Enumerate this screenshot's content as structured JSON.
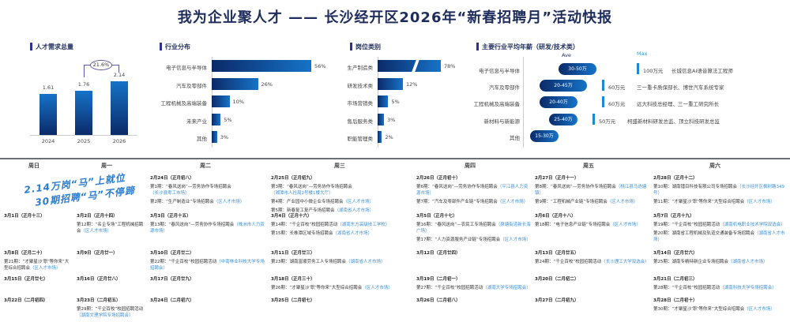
{
  "title": "我为企业聚人才 —— 长沙经开区2026年“新春招聘月”活动快报",
  "colors": {
    "bar_dark": "#0b2a68",
    "bar_light": "#1673c8",
    "accent": "#2f3192",
    "location": "#3d8fd8"
  },
  "charts": [
    {
      "type": "bar",
      "title": "人才需求总量",
      "categories": [
        "2024",
        "2025",
        "2026"
      ],
      "values": [
        1.61,
        1.76,
        2.14
      ],
      "value_labels": [
        "1.61",
        "1.76",
        "2.14"
      ],
      "annotation": "21.6%"
    },
    {
      "type": "bar",
      "orientation": "horizontal",
      "title": "行业分布",
      "categories": [
        "电子信息与半导体",
        "汽车及零部件",
        "工程机械及高端装备",
        "未来产业",
        "其他"
      ],
      "values": [
        56,
        26,
        10,
        5,
        3
      ],
      "value_labels": [
        "56%",
        "26%",
        "10%",
        "5%",
        "3%"
      ]
    },
    {
      "type": "bar",
      "orientation": "horizontal",
      "title": "岗位类别",
      "categories": [
        "生产制造类",
        "研发技术类",
        "市场营销类",
        "售后服务类",
        "职能管理类"
      ],
      "values": [
        78,
        12,
        5,
        3,
        2
      ],
      "value_labels": [
        "78%",
        "12%",
        "5%",
        "3%",
        "2%"
      ]
    },
    {
      "type": "bar",
      "orientation": "horizontal",
      "title": "主要行业平均年薪（研发/技术类）",
      "ave_label": "Ave",
      "max_label": "Max",
      "categories": [
        "电子信息与半导体",
        "汽车及零部件",
        "工程机械及高端装备",
        "新材料与新能源",
        "其他"
      ],
      "ranges": [
        [
          30,
          50
        ],
        [
          20,
          45
        ],
        [
          20,
          40
        ],
        [
          25,
          40
        ],
        [
          15,
          30
        ]
      ],
      "range_labels": [
        "30-50万",
        "20-45万",
        "20-40万",
        "25-40万",
        "15-30万"
      ],
      "max": [
        "100万元",
        "60万元",
        "60万元",
        "50万元"
      ],
      "max_notes": [
        "长城信息AI语音算法工程师",
        "三一重卡质保部长、博世汽车系统专家",
        "远大科技总经理、三一重工研究所长",
        "柯盛新材料研发总监、顶立科技研发总监"
      ]
    }
  ],
  "calendar": {
    "days": [
      "周日",
      "周一",
      "周二",
      "周三",
      "周四",
      "周五",
      "周六"
    ],
    "slogan": [
      "2.14万岗“马”上就位",
      "30期招聘“马”不停蹄"
    ],
    "weeks": [
      [
        null,
        null,
        {
          "date": "2月24日（正月初八）",
          "events": [
            {
              "t": "第1期：“春风送岗”—劳务协作专场招聘会",
              "l": "（长沙县零工市场）"
            },
            {
              "t": "第2期：“生产制造业”专场招聘会",
              "l": "（区人才市场）"
            }
          ]
        },
        {
          "date": "2月25日（正月初九）",
          "events": [
            {
              "t": "第3期：“春风送岗”—劳务协作专场招聘会",
              "l": "（湘潭市人社局2号楼1楼大厅）"
            },
            {
              "t": "第4期：产业园中小微企业专场招聘会",
              "l": "（区人才市场）"
            },
            {
              "t": "第5期：新春复工复产专场招聘会",
              "l": "（湖南省人才市场）"
            }
          ]
        },
        {
          "date": "2月26日（正月初十）",
          "events": [
            {
              "t": "第6期：“春风送岗”—劳务协作专场招聘会",
              "l": "（平江县人力资源市场）"
            },
            {
              "t": "第7期：“汽车及零部件产业链”专场招聘会",
              "l": "（区人才市场）"
            }
          ]
        },
        {
          "date": "2月27日（正月十一）",
          "events": [
            {
              "t": "第8期：“春风送岗”—劳务协作专场招聘会",
              "l": "（桃江县马迹塘镇）"
            },
            {
              "t": "第9期：“工程机械产业链”专场招聘会",
              "l": "（区人才市场）"
            }
          ]
        },
        {
          "date": "2月28日（正月十二）",
          "events": [
            {
              "t": "第10期：湖南镭目科技有限公司专场招聘会",
              "l": "（长沙经开区枫树路349号）"
            },
            {
              "t": "第11期：“才聚星沙‘职’等你来”大型综合招聘会",
              "l": "（区人才市场）"
            }
          ]
        }
      ],
      [
        {
          "date": "3月1日（正月十三）",
          "events": []
        },
        {
          "date": "3月2日（正月十四）",
          "events": [
            {
              "t": "第12期：“名企专场”工程机械招聘会",
              "l": "（区人才市场）"
            }
          ]
        },
        {
          "date": "3月3日（正月十五）",
          "events": [
            {
              "t": "第13期：“春风送岗”—劳务协作专场招聘会",
              "l": "（株洲市人力资源市场）"
            }
          ]
        },
        {
          "date": "3月4日（正月十六）",
          "events": [
            {
              "t": "第14期：“千企百校”校园招聘活动",
              "l": "（湖南东方高级技工学校）"
            },
            {
              "t": "第15期：长株潭区域专场招聘会",
              "l": "（湖南省人才市场）"
            }
          ]
        },
        {
          "date": "3月5日（正月十七）",
          "events": [
            {
              "t": "第16期：“春风送岗”—农民工专场招聘会",
              "l": "（泉塘街道新长海广场）"
            },
            {
              "t": "第17期：“人力资源服务产业链”专场招聘会",
              "l": "（区人才市场）"
            }
          ]
        },
        {
          "date": "3月6日（正月十八）",
          "events": [
            {
              "t": "第18期：“电子信息产业链”专场招聘会",
              "l": "（区人才市场）"
            }
          ]
        },
        {
          "date": "3月7日（正月十九）",
          "events": [
            {
              "t": "第19期：“千企百校”校园招聘活动",
              "l": "（湖南机电职业技术学院双选会）"
            },
            {
              "t": "第20期：湖南省工程机械及轨道交通装备专场招聘会",
              "l": "（湖南省人才市场）"
            }
          ]
        }
      ],
      [
        {
          "date": "3月8日（正月二十）",
          "events": [
            {
              "t": "第21期：“才聚星沙‘职’等你来”大型综合招聘会",
              "l": "（区人才市场）"
            }
          ]
        },
        {
          "date": "3月9日（正月廿一）",
          "events": []
        },
        {
          "date": "3月10日（正月廿二）",
          "events": [
            {
              "t": "第22期：“千企百校”校园招聘活动",
              "l": "（中南林业科技大学专场招聘会）"
            }
          ]
        },
        {
          "date": "3月11日（正月廿三）",
          "events": [
            {
              "t": "第23期：湖南富顺劳务工人专场招聘会",
              "l": "（湖南省人才市场）"
            }
          ]
        },
        {
          "date": "3月12日（正月廿四）",
          "events": []
        },
        {
          "date": "3月13日（正月廿五）",
          "events": [
            {
              "t": "第24期：“千企百校”校园招聘活动",
              "l": "（长沙理工大学双选会）"
            }
          ]
        },
        {
          "date": "3月14日（正月廿六）",
          "events": [
            {
              "t": "第25期：湖南专精特新企业专场招聘会",
              "l": "（湖南省人才市场）"
            }
          ]
        }
      ],
      [
        {
          "date": "3月15日（正月廿七）",
          "events": []
        },
        {
          "date": "3月16日（正月廿八）",
          "events": []
        },
        {
          "date": "3月17日（正月廿九）",
          "events": []
        },
        {
          "date": "3月18日（正月三十）",
          "events": [
            {
              "t": "第26期：“才聚星沙‘职’等你来”大型综合招聘会",
              "l": "（区人才市场）"
            }
          ]
        },
        {
          "date": "3月19日（二月初一）",
          "events": [
            {
              "t": "第27期：“千企百校”校园招聘活动",
              "l": "（湖南大学专场招聘会）"
            }
          ]
        },
        {
          "date": "3月20日（二月初二）",
          "events": []
        },
        {
          "date": "3月21日（二月初三）",
          "events": [
            {
              "t": "第28期：“千企百校”校园招聘活动",
              "l": "（湖南科技大学专场招聘会）"
            }
          ]
        }
      ],
      [
        {
          "date": "3月22日（二月初四）",
          "events": []
        },
        {
          "date": "3月23日（二月初五）",
          "events": [
            {
              "t": "第29期：“千企百校”校园招聘活动",
              "l": "（湖南文理学院专场招聘会）"
            }
          ]
        },
        {
          "date": "3月24日（二月初六）",
          "events": []
        },
        {
          "date": "3月25日（二月初七）",
          "events": []
        },
        {
          "date": "3月26日（二月初八）",
          "events": []
        },
        {
          "date": "3月27日（二月初九）",
          "events": []
        },
        {
          "date": "3月28日（二月初十）",
          "events": [
            {
              "t": "第30期：“才聚星沙‘职’等你来”大型综合招聘会",
              "l": "（区人才市场）"
            }
          ]
        }
      ]
    ]
  }
}
